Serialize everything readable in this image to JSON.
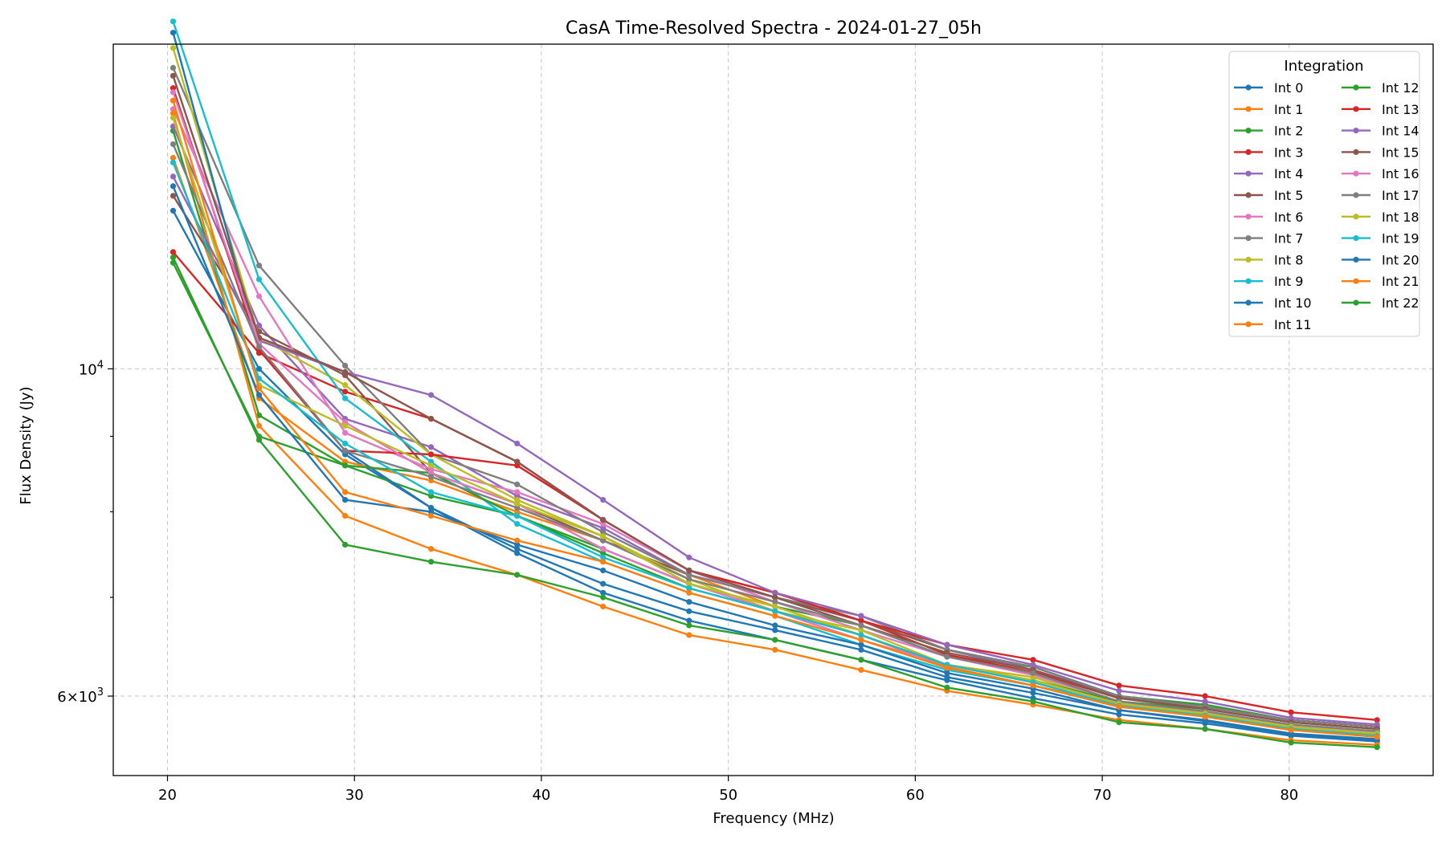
{
  "chart_data": {
    "type": "line",
    "title": "CasA Time-Resolved Spectra - 2024-01-27_05h",
    "xlabel": "Frequency (MHz)",
    "ylabel": "Flux Density (Jy)",
    "xlim": [
      17.1,
      87.7
    ],
    "ylim": [
      5300,
      16600
    ],
    "yscale": "log",
    "grid": true,
    "x_ticks": [
      20,
      30,
      40,
      50,
      60,
      70,
      80
    ],
    "y_ticks": [
      {
        "value": 10000,
        "base": "10",
        "exp": "4"
      },
      {
        "value": 6000,
        "mantissa": "6",
        "base": "10",
        "exp": "3"
      }
    ],
    "y_minor_ticks": [
      7000,
      8000,
      9000
    ],
    "legend_title": "Integration",
    "legend_location": "top-right",
    "x": [
      20.3,
      24.9,
      29.5,
      34.1,
      38.7,
      43.3,
      47.9,
      52.5,
      57.1,
      61.7,
      66.3,
      70.9,
      75.5,
      80.1,
      84.7
    ],
    "series": [
      {
        "name": "Int 0",
        "color": "#1f77b4",
        "values": [
          12800,
          10000,
          8750,
          8050,
          7550,
          7150,
          6850,
          6650,
          6450,
          6180,
          6030,
          5870,
          5770,
          5650,
          5600
        ]
      },
      {
        "name": "Int 1",
        "color": "#ff7f0e",
        "values": [
          13900,
          9550,
          8650,
          8400,
          8000,
          7650,
          7250,
          6900,
          6600,
          6280,
          6100,
          5920,
          5820,
          5700,
          5650
        ]
      },
      {
        "name": "Int 2",
        "color": "#2ca02c",
        "values": [
          14500,
          9300,
          8600,
          8200,
          7950,
          7550,
          7150,
          6900,
          6700,
          6380,
          6280,
          6000,
          5920,
          5780,
          5720
        ]
      },
      {
        "name": "Int 3",
        "color": "#d62728",
        "values": [
          12000,
          10250,
          9650,
          9250,
          8650,
          7900,
          7300,
          7050,
          6750,
          6400,
          6230,
          5980,
          5900,
          5780,
          5720
        ]
      },
      {
        "name": "Int 4",
        "color": "#9467bd",
        "values": [
          14600,
          10700,
          9250,
          8850,
          8200,
          7800,
          7250,
          7000,
          6750,
          6450,
          6250,
          6000,
          5900,
          5780,
          5720
        ]
      },
      {
        "name": "Int 5",
        "color": "#8c564b",
        "values": [
          13100,
          10600,
          9900,
          8500,
          8100,
          7650,
          7250,
          7000,
          6750,
          6450,
          6280,
          6000,
          5900,
          5780,
          5720
        ]
      },
      {
        "name": "Int 6",
        "color": "#e377c2",
        "values": [
          15000,
          11200,
          9050,
          8550,
          8250,
          7850,
          7300,
          6950,
          6650,
          6380,
          6200,
          5950,
          5850,
          5730,
          5680
        ]
      },
      {
        "name": "Int 7",
        "color": "#7f7f7f",
        "values": [
          16000,
          11750,
          10050,
          8750,
          8350,
          7750,
          7250,
          7000,
          6800,
          6450,
          6280,
          6000,
          5900,
          5780,
          5720
        ]
      },
      {
        "name": "Int 8",
        "color": "#bcbd22",
        "values": [
          16500,
          10500,
          9750,
          8750,
          8150,
          7700,
          7200,
          6850,
          6650,
          6300,
          6180,
          5930,
          5830,
          5710,
          5650
        ]
      },
      {
        "name": "Int 9",
        "color": "#17becf",
        "values": [
          17200,
          11500,
          9550,
          8650,
          7850,
          7400,
          7050,
          6800,
          6500,
          6250,
          6100,
          5900,
          5820,
          5700,
          5640
        ]
      },
      {
        "name": "Int 10",
        "color": "#1f77b4",
        "values": [
          16900,
          10300,
          8800,
          8050,
          7500,
          7050,
          6750,
          6550,
          6350,
          6150,
          5980,
          5830,
          5750,
          5640,
          5590
        ]
      },
      {
        "name": "Int 11",
        "color": "#ff7f0e",
        "values": [
          14900,
          9150,
          7950,
          7550,
          7250,
          6900,
          6600,
          6450,
          6250,
          6050,
          5920,
          5780,
          5700,
          5600,
          5560
        ]
      },
      {
        "name": "Int 12",
        "color": "#2ca02c",
        "values": [
          11800,
          9000,
          8600,
          8500,
          7950,
          7500,
          7100,
          6850,
          6600,
          6300,
          6150,
          5950,
          5880,
          5760,
          5700
        ]
      },
      {
        "name": "Int 13",
        "color": "#d62728",
        "values": [
          15500,
          10300,
          8800,
          8750,
          8600,
          7900,
          7300,
          7050,
          6750,
          6500,
          6350,
          6100,
          6000,
          5850,
          5780
        ]
      },
      {
        "name": "Int 14",
        "color": "#9467bd",
        "values": [
          13500,
          10450,
          9950,
          9600,
          8900,
          8150,
          7450,
          7050,
          6800,
          6500,
          6300,
          6050,
          5950,
          5800,
          5740
        ]
      },
      {
        "name": "Int 15",
        "color": "#8c564b",
        "values": [
          15800,
          10500,
          9950,
          9250,
          8650,
          7900,
          7300,
          7000,
          6700,
          6420,
          6250,
          5980,
          5880,
          5760,
          5700
        ]
      },
      {
        "name": "Int 16",
        "color": "#e377c2",
        "values": [
          15400,
          10400,
          9200,
          8500,
          8100,
          7550,
          7150,
          6850,
          6550,
          6300,
          6150,
          5930,
          5850,
          5730,
          5670
        ]
      },
      {
        "name": "Int 17",
        "color": "#7f7f7f",
        "values": [
          14200,
          10350,
          8800,
          8450,
          8050,
          7650,
          7200,
          6950,
          6700,
          6380,
          6220,
          5950,
          5860,
          5740,
          5680
        ]
      },
      {
        "name": "Int 18",
        "color": "#bcbd22",
        "values": [
          14800,
          9750,
          9150,
          8600,
          8100,
          7700,
          7150,
          6900,
          6600,
          6300,
          6150,
          5930,
          5840,
          5720,
          5660
        ]
      },
      {
        "name": "Int 19",
        "color": "#17becf",
        "values": [
          13800,
          9850,
          8900,
          8250,
          7950,
          7450,
          7100,
          6850,
          6600,
          6300,
          6130,
          5910,
          5820,
          5700,
          5640
        ]
      },
      {
        "name": "Int 20",
        "color": "#1f77b4",
        "values": [
          13300,
          9600,
          8150,
          8000,
          7600,
          7300,
          6950,
          6700,
          6500,
          6220,
          6070,
          5870,
          5780,
          5660,
          5610
        ]
      },
      {
        "name": "Int 21",
        "color": "#ff7f0e",
        "values": [
          15200,
          9700,
          8250,
          7950,
          7650,
          7400,
          7050,
          6800,
          6550,
          6270,
          6100,
          5900,
          5810,
          5690,
          5630
        ]
      },
      {
        "name": "Int 22",
        "color": "#2ca02c",
        "values": [
          11900,
          8950,
          7600,
          7400,
          7250,
          7000,
          6700,
          6550,
          6350,
          6080,
          5950,
          5760,
          5700,
          5580,
          5540
        ]
      }
    ]
  }
}
